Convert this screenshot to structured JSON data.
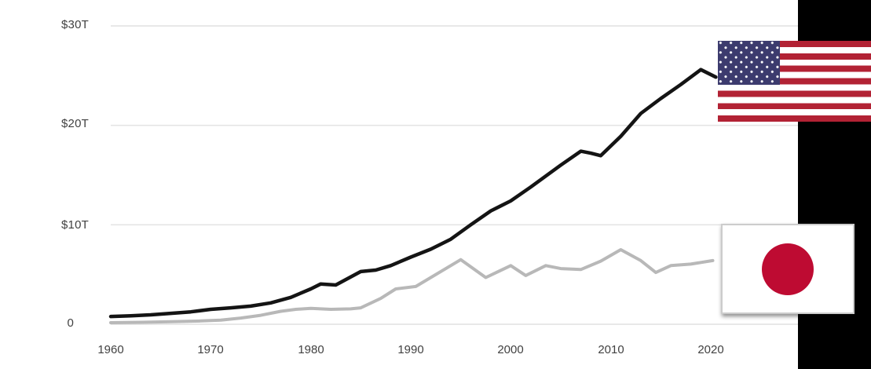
{
  "chart_data": {
    "type": "line",
    "grid": true,
    "y_axis": {
      "unit": "trillions USD",
      "range": [
        0,
        30
      ],
      "tick_labels": [
        "$30T",
        "$20T",
        "$10T",
        "0"
      ],
      "tick_values": [
        30,
        20,
        10,
        0
      ]
    },
    "x_axis": {
      "range": [
        1960,
        2021
      ],
      "tick_labels": [
        "1960",
        "1970",
        "1980",
        "1990",
        "2000",
        "2010",
        "2020"
      ],
      "tick_values": [
        1960,
        1970,
        1980,
        1990,
        2000,
        2010,
        2020
      ]
    },
    "legend_note": "series identified by country flag icons placed at line ends",
    "series": [
      {
        "name": "United States",
        "icon": "us-flag-icon",
        "color": "#141414",
        "stroke_width": 4.5,
        "points": [
          [
            1960,
            0.78
          ],
          [
            1962,
            0.85
          ],
          [
            1964,
            0.95
          ],
          [
            1966,
            1.1
          ],
          [
            1968,
            1.25
          ],
          [
            1970,
            1.5
          ],
          [
            1972,
            1.65
          ],
          [
            1974,
            1.82
          ],
          [
            1976,
            2.15
          ],
          [
            1978,
            2.7
          ],
          [
            1980,
            3.55
          ],
          [
            1981,
            4.05
          ],
          [
            1982.5,
            3.95
          ],
          [
            1985,
            5.3
          ],
          [
            1986.5,
            5.45
          ],
          [
            1988,
            5.9
          ],
          [
            1990,
            6.75
          ],
          [
            1992,
            7.55
          ],
          [
            1994,
            8.55
          ],
          [
            1996,
            10.0
          ],
          [
            1998,
            11.4
          ],
          [
            2000,
            12.4
          ],
          [
            2002,
            13.8
          ],
          [
            2005,
            16.0
          ],
          [
            2007,
            17.4
          ],
          [
            2008,
            17.2
          ],
          [
            2009,
            16.95
          ],
          [
            2011,
            18.9
          ],
          [
            2013,
            21.2
          ],
          [
            2015,
            22.7
          ],
          [
            2017,
            24.1
          ],
          [
            2019,
            25.6
          ],
          [
            2020.5,
            24.85
          ]
        ]
      },
      {
        "name": "Japan",
        "icon": "japan-flag-icon",
        "color": "#b8b8b8",
        "stroke_width": 4,
        "points": [
          [
            1960,
            0.16
          ],
          [
            1963,
            0.2
          ],
          [
            1966,
            0.26
          ],
          [
            1969,
            0.33
          ],
          [
            1971,
            0.42
          ],
          [
            1973,
            0.62
          ],
          [
            1975,
            0.9
          ],
          [
            1977,
            1.3
          ],
          [
            1978.5,
            1.5
          ],
          [
            1980,
            1.6
          ],
          [
            1982,
            1.5
          ],
          [
            1984,
            1.55
          ],
          [
            1985,
            1.65
          ],
          [
            1987,
            2.6
          ],
          [
            1988.5,
            3.55
          ],
          [
            1990.5,
            3.8
          ],
          [
            1995,
            6.5
          ],
          [
            1997.5,
            4.7
          ],
          [
            2000,
            5.9
          ],
          [
            2001.5,
            4.9
          ],
          [
            2003.5,
            5.9
          ],
          [
            2005,
            5.6
          ],
          [
            2007,
            5.5
          ],
          [
            2009,
            6.35
          ],
          [
            2011,
            7.5
          ],
          [
            2013,
            6.4
          ],
          [
            2014.5,
            5.2
          ],
          [
            2016,
            5.9
          ],
          [
            2018,
            6.05
          ],
          [
            2020.2,
            6.4
          ]
        ]
      }
    ]
  },
  "colors": {
    "grid_line": "#e4e4e4",
    "axis_text": "#414141",
    "us_line": "#141414",
    "japan_line": "#b8b8b8",
    "us_flag_red": "#b22234",
    "us_flag_blue": "#3c3b6e",
    "japan_flag_red": "#be0b32",
    "right_bar": "#000000"
  }
}
